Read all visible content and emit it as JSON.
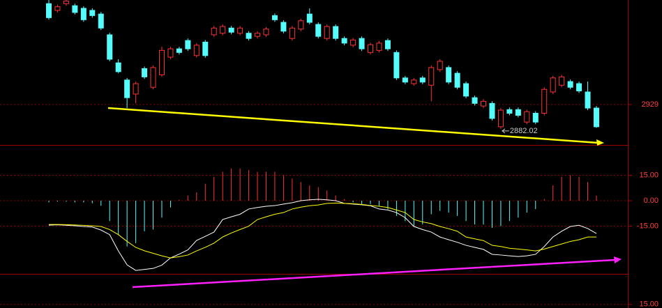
{
  "chart_data": [
    {
      "type": "candlestick",
      "open": [
        3123,
        3110,
        3123,
        3119,
        3114,
        3110,
        3103,
        3063,
        3009,
        2976,
        2949,
        2998,
        2962,
        2986,
        3020,
        3036,
        3052,
        3023,
        3049,
        3063,
        3066,
        3076,
        3066,
        3066,
        3060,
        3063,
        3100,
        3087,
        3056,
        3074,
        3103,
        3083,
        3056,
        3079,
        3056,
        3043,
        3056,
        3029,
        3033,
        3052,
        3029,
        2980,
        2969,
        2980,
        2966,
        2996,
        3000,
        2989,
        2969,
        2942,
        2926,
        2931,
        2886,
        2919,
        2919,
        2895,
        2912,
        2912,
        2953,
        2966,
        2973,
        2969,
        2953,
        2922
      ],
      "high": [
        3130,
        3121,
        3130,
        3123,
        3118,
        3114,
        3107,
        3067,
        3016,
        2980,
        2973,
        3002,
        3004,
        3040,
        3040,
        3040,
        3056,
        3047,
        3053,
        3080,
        3083,
        3080,
        3080,
        3070,
        3070,
        3078,
        3104,
        3091,
        3080,
        3094,
        3114,
        3087,
        3083,
        3083,
        3060,
        3057,
        3060,
        3048,
        3051,
        3056,
        3033,
        2984,
        2980,
        2984,
        3004,
        3016,
        3004,
        2993,
        2973,
        2946,
        2939,
        2935,
        2922,
        2923,
        2923,
        2919,
        2916,
        2962,
        2984,
        2986,
        2977,
        2973,
        2973,
        2926
      ],
      "low": [
        3092,
        3106,
        3119,
        3102,
        3088,
        3096,
        3072,
        3012,
        2989,
        2922,
        2931,
        2978,
        2958,
        2982,
        3016,
        3025,
        3032,
        3019,
        3019,
        3059,
        3062,
        3064,
        3062,
        3052,
        3056,
        3059,
        3088,
        3066,
        3052,
        3070,
        3083,
        3056,
        3052,
        3052,
        3043,
        3039,
        3032,
        3025,
        3029,
        3032,
        2976,
        2968,
        2965,
        2968,
        2935,
        2992,
        2968,
        2958,
        2941,
        2927,
        2922,
        2898,
        2882.02,
        2908,
        2904,
        2891,
        2891,
        2908,
        2949,
        2962,
        2958,
        2951,
        2918,
        2884
      ],
      "close": [
        3096,
        3117,
        3128,
        3106,
        3092,
        3100,
        3076,
        3016,
        2992,
        2942,
        2969,
        2982,
        3000,
        3033,
        3036,
        3029,
        3036,
        3043,
        3023,
        3076,
        3079,
        3068,
        3076,
        3056,
        3066,
        3074,
        3092,
        3070,
        3076,
        3090,
        3087,
        3060,
        3079,
        3056,
        3047,
        3053,
        3036,
        3044,
        3047,
        3036,
        2980,
        2972,
        2976,
        2972,
        3000,
        3012,
        2972,
        2962,
        2945,
        2931,
        2935,
        2902,
        2918,
        2912,
        2908,
        2915,
        2895,
        2958,
        2980,
        2982,
        2962,
        2955,
        2922,
        2886
      ],
      "up_color": "#ff3232",
      "down_color": "#54fcfc",
      "ylim": [
        2851,
        3130
      ],
      "yticks": [
        2929
      ],
      "grid": true
    },
    {
      "type": "macd",
      "histogram": {
        "values": [
          -1,
          -0.5,
          -0.5,
          -1,
          -1,
          -1.5,
          -3,
          -12,
          -20,
          -27,
          -25,
          -18,
          -17,
          -10,
          -4,
          0.5,
          3,
          5,
          10,
          14,
          17,
          19,
          19,
          18,
          17,
          17,
          17,
          15,
          13,
          11,
          9,
          8,
          6,
          3,
          1,
          -1,
          -2,
          -2,
          -3,
          -5,
          -9,
          -12,
          -15,
          -14,
          -8,
          -6,
          -7,
          -9,
          -12,
          -14,
          -14,
          -16,
          -15,
          -12,
          -10,
          -7,
          -5,
          1,
          9,
          14,
          15,
          14,
          11,
          3
        ],
        "up_color": "#ff3232",
        "down_color": "#54fcfc"
      },
      "series": [
        {
          "color": "#ffffff",
          "values": [
            -14.4,
            -14.2,
            -14.5,
            -14.8,
            -15.2,
            -15.5,
            -17.3,
            -20,
            -29.6,
            -37.8,
            -41.1,
            -40.5,
            -39.9,
            -38,
            -33.7,
            -31.5,
            -29,
            -23.4,
            -21,
            -18.5,
            -11.1,
            -9.5,
            -8,
            -4.9,
            -4,
            -3.3,
            -2.9,
            -2,
            -1.2,
            0,
            0.5,
            0.8,
            0.5,
            0,
            -1.6,
            -2,
            -2.4,
            -3,
            -4.9,
            -5.5,
            -7,
            -10,
            -15.2,
            -17,
            -18.5,
            -21.4,
            -23,
            -24.5,
            -26.3,
            -27.5,
            -28.7,
            -31.6,
            -32,
            -32.5,
            -32.9,
            -32.5,
            -31.6,
            -27,
            -21.4,
            -18,
            -15.2,
            -14.5,
            -16.4,
            -19.3
          ]
        },
        {
          "color": "#ffff00",
          "values": [
            -14,
            -14,
            -14.1,
            -14.3,
            -14.5,
            -14.8,
            -15.2,
            -17,
            -20,
            -24,
            -27.5,
            -29.5,
            -31,
            -32.5,
            -33.7,
            -33,
            -32,
            -29.6,
            -27.5,
            -25,
            -21.4,
            -19,
            -17,
            -15,
            -11.1,
            -9.5,
            -8,
            -7,
            -4.9,
            -3.8,
            -3,
            -2.5,
            -1.6,
            -1.4,
            -1.6,
            -1.8,
            -2.2,
            -2.8,
            -3.3,
            -4,
            -5.5,
            -7,
            -11.1,
            -12.5,
            -13.5,
            -15.2,
            -16.5,
            -18,
            -21.4,
            -22.5,
            -23.5,
            -26.3,
            -27,
            -28,
            -28.5,
            -29,
            -29.6,
            -28.5,
            -27,
            -25.5,
            -24,
            -23,
            -21.4,
            -21.4
          ]
        }
      ],
      "ylim": [
        -42.7,
        31.2
      ],
      "yticks": [
        {
          "value": 15,
          "label": "15.00"
        },
        {
          "value": 0,
          "label": "0.00"
        },
        {
          "value": -15,
          "label": "-15.00"
        }
      ],
      "grid": true
    },
    {
      "type": "bar",
      "ylim": [
        13,
        30
      ],
      "yticks": [
        {
          "value": 15,
          "label": "15.00"
        }
      ],
      "grid": true
    }
  ]
}
